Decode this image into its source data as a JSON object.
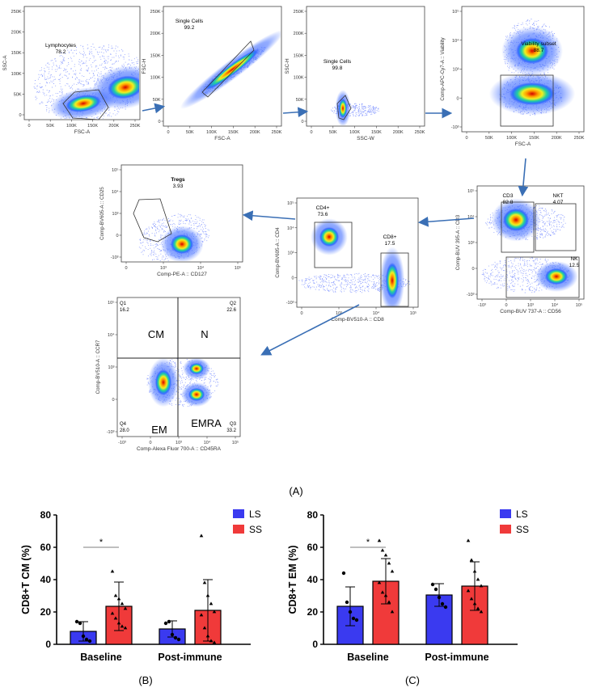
{
  "panels": {
    "flow": {
      "label": "(A)",
      "plots": [
        {
          "id": "p1",
          "ylabel": "SSC-A",
          "xlabel": "FSC-A",
          "gate": "Lymphocytes",
          "gate_value": "78.2",
          "xticks": [
            "0",
            "50K",
            "100K",
            "150K",
            "200K",
            "250K"
          ],
          "yticks": [
            "250K",
            "200K",
            "150K",
            "100K",
            "50K",
            "0"
          ]
        },
        {
          "id": "p2",
          "ylabel": "FSC-H",
          "xlabel": "FSC-A",
          "gate": "Single Cells",
          "gate_value": "99.2",
          "xticks": [
            "0",
            "50K",
            "100K",
            "150K",
            "200K",
            "250K"
          ],
          "yticks": [
            "250K",
            "200K",
            "150K",
            "100K",
            "50K",
            "0"
          ]
        },
        {
          "id": "p3",
          "ylabel": "SSC-H",
          "xlabel": "SSC-W",
          "gate": "Single Cells",
          "gate_value": "99.8",
          "xticks": [
            "0",
            "50K",
            "100K",
            "150K",
            "200K",
            "250K"
          ],
          "yticks": [
            "250K",
            "200K",
            "150K",
            "100K",
            "50K",
            "0"
          ]
        },
        {
          "id": "p4",
          "ylabel": "Comp-APC-Cy7-A :: Viability",
          "xlabel": "FSC-A",
          "gate": "Viability subset",
          "gate_value": "88.7",
          "xticks": [
            "0",
            "50K",
            "100K",
            "150K",
            "200K",
            "250K"
          ],
          "yticks": [
            "10^5",
            "10^4",
            "10^3",
            "0",
            "-10^3"
          ]
        },
        {
          "id": "p5",
          "ylabel": "Comp-BV605-A :: CD25",
          "xlabel": "Comp-PE-A :: CD127",
          "gate": "Tregs",
          "gate_value": "3.93",
          "xticks": [
            "0",
            "10^3",
            "10^4",
            "10^5"
          ],
          "yticks": [
            "10^5",
            "10^4",
            "10^3",
            "0",
            "-10^3"
          ]
        },
        {
          "id": "p6",
          "ylabel": "Comp-BV605-A :: CD4",
          "xlabel": "Comp-BV510-A :: CD8",
          "gates": [
            {
              "name": "CD4+",
              "value": "73.6"
            },
            {
              "name": "CD8+",
              "value": "17.5"
            }
          ],
          "xticks": [
            "0",
            "10^3",
            "10^4",
            "10^5"
          ],
          "yticks": [
            "10^5",
            "10^4",
            "10^3",
            "0",
            "-10^3"
          ]
        },
        {
          "id": "p7",
          "ylabel": "Comp-BUV 395-A :: CD3",
          "xlabel": "Comp-BUV 737-A :: CD56",
          "gates": [
            {
              "name": "CD3",
              "value": "82.8"
            },
            {
              "name": "NKT",
              "value": "4.07"
            },
            {
              "name": "NK",
              "value": "12.5"
            }
          ],
          "xticks": [
            "-10^3",
            "0",
            "10^3",
            "10^4",
            "10^5"
          ],
          "yticks": [
            "10^5",
            "10^4",
            "10^3",
            "0",
            "-10^3"
          ]
        },
        {
          "id": "p8",
          "ylabel": "Comp-BV510-A :: CCR7",
          "xlabel": "Comp-Alexa Fluor 700-A :: CD45RA",
          "quadrants": [
            {
              "q": "Q1",
              "value": "16.2",
              "name": "CM"
            },
            {
              "q": "Q2",
              "value": "22.6",
              "name": "N"
            },
            {
              "q": "Q4",
              "value": "28.0",
              "name": "EM"
            },
            {
              "q": "Q3",
              "value": "33.2",
              "name": "EMRA"
            }
          ],
          "xticks": [
            "-10^3",
            "0",
            "10^3",
            "10^4",
            "10^5"
          ],
          "yticks": [
            "10^5",
            "10^4",
            "10^3",
            "0",
            "-10^3"
          ]
        }
      ]
    }
  },
  "chart_data": [
    {
      "type": "bar",
      "panel_label": "(B)",
      "ylabel": "CD8+T CM (%)",
      "categories": [
        "Baseline",
        "Post-immune"
      ],
      "ylim": [
        0,
        80
      ],
      "yticks": [
        "0",
        "20",
        "40",
        "60",
        "80"
      ],
      "legend": "top-right",
      "series": [
        {
          "name": "LS",
          "color": "#3a3af0",
          "values": [
            8,
            9.5
          ],
          "sd": [
            6,
            5
          ],
          "points": [
            [
              14,
              13,
              5,
              3,
              2
            ],
            [
              13,
              14,
              6,
              4,
              3
            ]
          ]
        },
        {
          "name": "SS",
          "color": "#f03a3a",
          "values": [
            23.5,
            21
          ],
          "sd": [
            15,
            19
          ],
          "points": [
            [
              45,
              30,
              28,
              25,
              22,
              19,
              16,
              13,
              11,
              10
            ],
            [
              67,
              38,
              30,
              25,
              20,
              18,
              10,
              5,
              2,
              1
            ]
          ]
        }
      ],
      "significance": [
        {
          "category": "Baseline",
          "label": "*"
        }
      ]
    },
    {
      "type": "bar",
      "panel_label": "(C)",
      "ylabel": "CD8+T EM (%)",
      "categories": [
        "Baseline",
        "Post-immune"
      ],
      "ylim": [
        0,
        80
      ],
      "yticks": [
        "0",
        "20",
        "40",
        "60",
        "80"
      ],
      "legend": "top-right",
      "series": [
        {
          "name": "LS",
          "color": "#3a3af0",
          "values": [
            23.5,
            30.5
          ],
          "sd": [
            12,
            7
          ],
          "points": [
            [
              44,
              26,
              20,
              16,
              15
            ],
            [
              37,
              34,
              29,
              25,
              23
            ]
          ]
        },
        {
          "name": "SS",
          "color": "#f03a3a",
          "values": [
            39,
            36
          ],
          "sd": [
            14,
            15
          ],
          "points": [
            [
              64,
              58,
              55,
              50,
              45,
              38,
              32,
              30,
              26,
              20
            ],
            [
              64,
              52,
              45,
              40,
              36,
              33,
              28,
              25,
              22,
              20
            ]
          ]
        }
      ],
      "significance": [
        {
          "category": "Baseline",
          "label": "*"
        }
      ]
    }
  ]
}
